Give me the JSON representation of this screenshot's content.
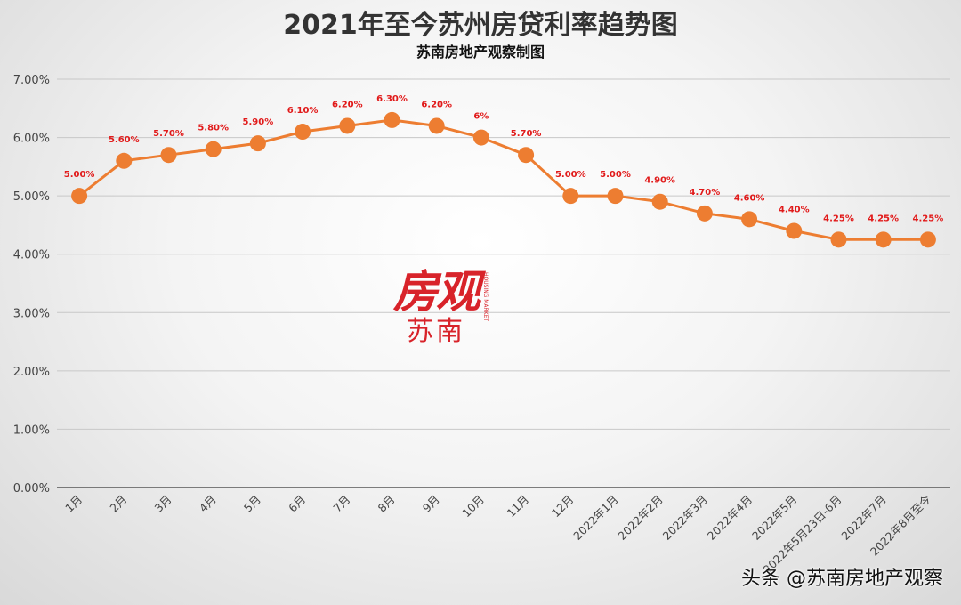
{
  "chart_data": {
    "type": "line",
    "title": "2021年至今苏州房贷利率趋势图",
    "subtitle": "苏南房地产观察制图",
    "categories": [
      "1月",
      "2月",
      "3月",
      "4月",
      "5月",
      "6月",
      "7月",
      "8月",
      "9月",
      "10月",
      "11月",
      "12月",
      "2022年1月",
      "2022年2月",
      "2022年3月",
      "2022年4月",
      "2022年5月",
      "2022年5月23日-6月",
      "2022年7月",
      "2022年8月至今"
    ],
    "series": [
      {
        "values": [
          5.0,
          5.6,
          5.7,
          5.8,
          5.9,
          6.1,
          6.2,
          6.3,
          6.2,
          6.0,
          5.7,
          5.0,
          5.0,
          4.9,
          4.7,
          4.6,
          4.4,
          4.25,
          4.25,
          4.25
        ],
        "labels": [
          "5.00%",
          "5.60%",
          "5.70%",
          "5.80%",
          "5.90%",
          "6.10%",
          "6.20%",
          "6.30%",
          "6.20%",
          "6%",
          "5.70%",
          "5.00%",
          "5.00%",
          "4.90%",
          "4.70%",
          "4.60%",
          "4.40%",
          "4.25%",
          "4.25%",
          "4.25%"
        ],
        "color": "#ed7d31"
      }
    ],
    "ylim": [
      0,
      7
    ],
    "yticks": [
      "0.00%",
      "1.00%",
      "2.00%",
      "3.00%",
      "4.00%",
      "5.00%",
      "6.00%",
      "7.00%"
    ],
    "grid": true,
    "legend": "none",
    "label_color": "#e11a1a"
  },
  "watermark": {
    "main": "房观",
    "sub": "苏南",
    "small": "HOUSING MARKET"
  },
  "footer": {
    "credit": "头条 @苏南房地产观察"
  }
}
